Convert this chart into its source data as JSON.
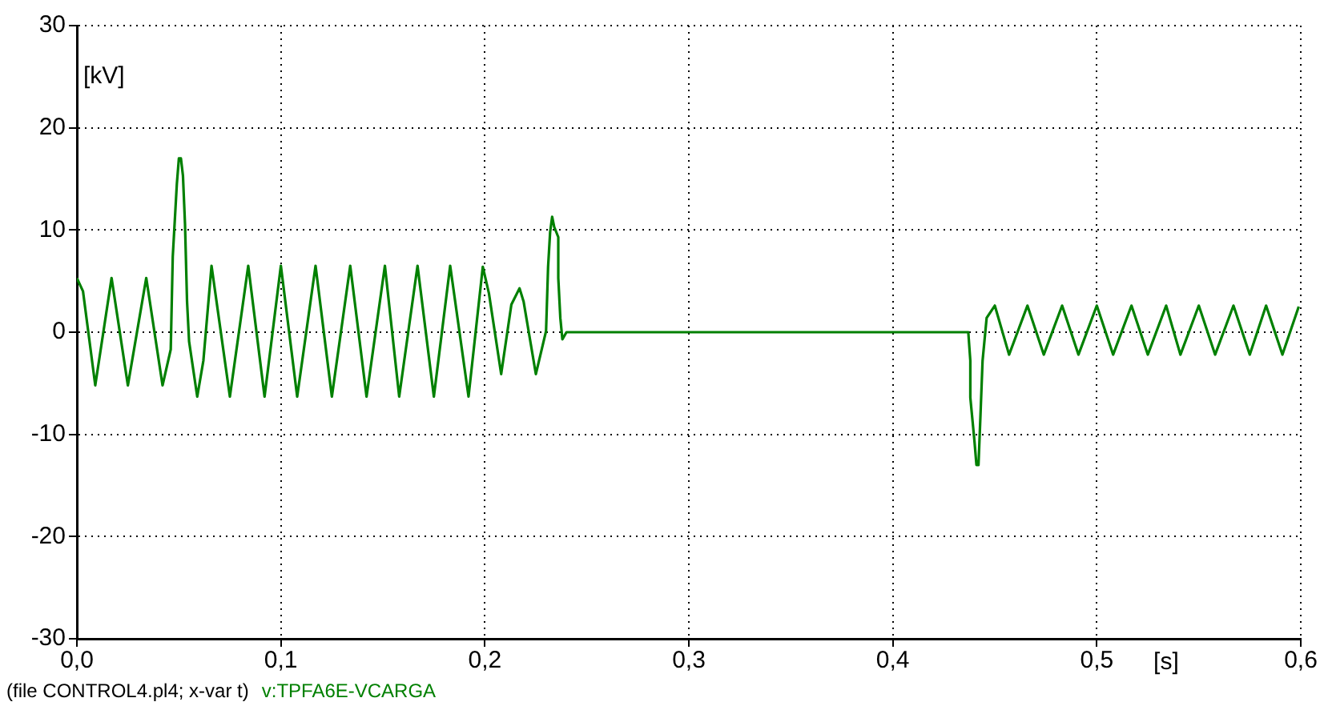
{
  "chart_data": {
    "type": "line",
    "ylabel": "[kV]",
    "xlabel": "[s]",
    "annotations": [
      "(file CONTROL4.pl4; x-var t)"
    ],
    "xlim": [
      0,
      0.6
    ],
    "xticks": [
      {
        "value": 0,
        "label": "0,0"
      },
      {
        "value": 0.1,
        "label": "0,1"
      },
      {
        "value": 0.2,
        "label": "0,2"
      },
      {
        "value": 0.3,
        "label": "0,3"
      },
      {
        "value": 0.4,
        "label": "0,4"
      },
      {
        "value": 0.5,
        "label": "0,5"
      },
      {
        "value": 0.6,
        "label": "0,6"
      }
    ],
    "ylim": [
      -30,
      30
    ],
    "yticks": [
      -30,
      -20,
      -10,
      0,
      10,
      20,
      30
    ],
    "grid": true,
    "legend": false,
    "marker": "none",
    "line_style": "solid",
    "series": [
      {
        "name": "v:TPFA6E-VCARGA",
        "color": "#008000",
        "x": [
          0,
          0.003,
          0.009,
          0.017,
          0.025,
          0.034,
          0.042,
          0.046,
          0.047,
          0.049,
          0.05,
          0.051,
          0.052,
          0.053,
          0.054,
          0.055,
          0.059,
          0.062,
          0.066,
          0.075,
          0.084,
          0.092,
          0.1,
          0.108,
          0.117,
          0.125,
          0.134,
          0.142,
          0.151,
          0.158,
          0.167,
          0.175,
          0.183,
          0.192,
          0.199,
          0.202,
          0.208,
          0.213,
          0.217,
          0.219,
          0.225,
          0.23,
          0.231,
          0.232,
          0.233,
          0.234,
          0.236,
          0.236,
          0.237,
          0.238,
          0.24,
          0.437,
          0.438,
          0.438,
          0.44,
          0.441,
          0.442,
          0.443,
          0.444,
          0.446,
          0.45,
          0.457,
          0.466,
          0.474,
          0.483,
          0.491,
          0.5,
          0.508,
          0.517,
          0.525,
          0.534,
          0.541,
          0.55,
          0.558,
          0.567,
          0.575,
          0.583,
          0.591,
          0.599
        ],
        "values": [
          5.3,
          4.0,
          -5.2,
          5.3,
          -5.2,
          5.3,
          -5.2,
          -1.7,
          7.4,
          14.5,
          17.0,
          17.0,
          15.3,
          10.6,
          3.0,
          -0.9,
          -6.3,
          -2.8,
          6.5,
          -6.3,
          6.5,
          -6.3,
          6.5,
          -6.3,
          6.5,
          -6.3,
          6.5,
          -6.3,
          6.5,
          -6.3,
          6.5,
          -6.3,
          6.5,
          -6.3,
          6.4,
          3.8,
          -4.1,
          2.7,
          4.3,
          3.0,
          -4.1,
          0.1,
          6.4,
          9.8,
          11.3,
          10.3,
          9.3,
          5.3,
          1.4,
          -0.7,
          0,
          0,
          -2.8,
          -6.4,
          -10.6,
          -13.0,
          -13.0,
          -8.0,
          -2.8,
          1.4,
          2.6,
          -2.2,
          2.6,
          -2.2,
          2.6,
          -2.2,
          2.6,
          -2.2,
          2.6,
          -2.2,
          2.6,
          -2.2,
          2.6,
          -2.2,
          2.6,
          -2.2,
          2.6,
          -2.2,
          2.5
        ]
      }
    ]
  }
}
